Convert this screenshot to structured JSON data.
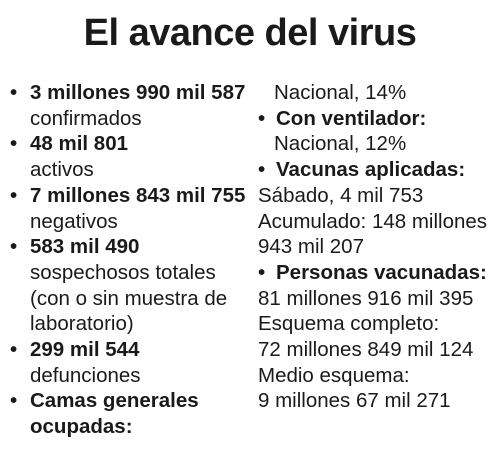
{
  "title": "El avance del virus",
  "left": {
    "items": [
      {
        "bold": "3 millones 990 mil 587",
        "text": " confirmados"
      },
      {
        "bold": "48 mil 801",
        "text": "activos"
      },
      {
        "bold": "7 millones 843 mil 755",
        "text": " negativos"
      },
      {
        "bold": "583 mil 490",
        "text": "sospechosos totales (con o sin muestra de laboratorio)"
      },
      {
        "bold": "299 mil 544",
        "text": "defunciones"
      },
      {
        "bold": "Camas generales ocupadas:"
      }
    ]
  },
  "right": {
    "camas_generales_value": "Nacional, 14%",
    "ventilador_label": "Con ventilador:",
    "ventilador_value": "Nacional, 12%",
    "vacunas_label": "Vacunas aplicadas:",
    "vacunas_sabado": "Sábado, 4 mil 753",
    "vacunas_acumulado": "Acumulado: 148 millones 943 mil 207",
    "personas_label": "Personas vacunadas:",
    "personas_total": "81 millones 916 mil 395",
    "esquema_completo_label": "Esquema completo:",
    "esquema_completo_value": "72 millones 849 mil 124",
    "medio_esquema_label": "Medio esquema:",
    "medio_esquema_value": "9 millones 67 mil 271"
  },
  "bullet_glyph": "•"
}
